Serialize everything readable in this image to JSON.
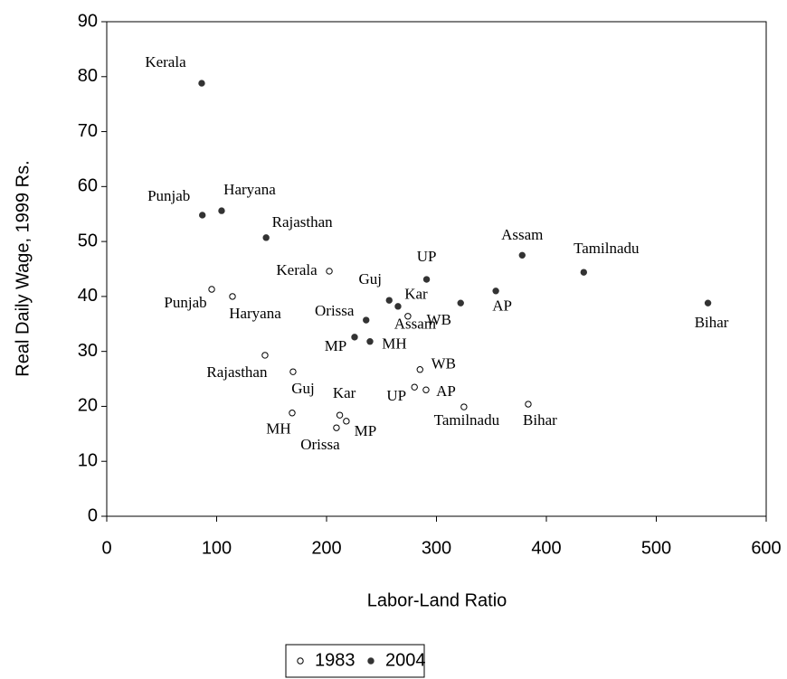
{
  "chart_data": {
    "type": "scatter",
    "xlabel": "Labor-Land Ratio",
    "ylabel": "Real Daily Wage, 1999 Rs.",
    "xlim": [
      0,
      600
    ],
    "xticks": [
      0,
      100,
      200,
      300,
      400,
      500,
      600
    ],
    "ylim": [
      0,
      90
    ],
    "yticks": [
      0,
      10,
      20,
      30,
      40,
      50,
      60,
      70,
      80,
      90
    ],
    "legend": "bottom",
    "series": [
      {
        "name": "1983",
        "marker": "hollow",
        "color": "#000000",
        "labels": [
          "Kerala",
          "Punjab",
          "Haryana",
          "Rajasthan",
          "Guj",
          "MH",
          "Kar",
          "Orissa",
          "MP",
          "UP",
          "AP",
          "WB",
          "Assam",
          "Tamilnadu",
          "Bihar"
        ],
        "x": [
          202.5,
          95.5,
          114.4,
          144,
          169.5,
          168.7,
          212,
          209,
          218,
          280,
          290.5,
          285,
          274,
          325,
          383.5
        ],
        "values": [
          44.6,
          41.3,
          40.0,
          29.3,
          26.3,
          18.8,
          18.4,
          16.1,
          17.3,
          23.5,
          23.0,
          26.7,
          36.4,
          19.9,
          20.4
        ]
      },
      {
        "name": "2004",
        "marker": "filled",
        "color": "#333333",
        "labels": [
          "Kerala",
          "Punjab",
          "Haryana",
          "Rajasthan",
          "UP",
          "Assam",
          "Tamilnadu",
          "Bihar",
          "Guj",
          "Kar",
          "WB",
          "AP",
          "Orissa",
          "MP",
          "MH"
        ],
        "x": [
          86.4,
          87,
          104.5,
          145,
          291,
          378,
          434,
          547,
          257,
          265,
          322,
          354,
          236,
          225.5,
          239.5
        ],
        "values": [
          78.8,
          54.8,
          55.6,
          50.7,
          43.1,
          47.5,
          44.4,
          38.8,
          39.3,
          38.2,
          38.8,
          41.0,
          35.7,
          32.6,
          31.8
        ]
      }
    ]
  }
}
